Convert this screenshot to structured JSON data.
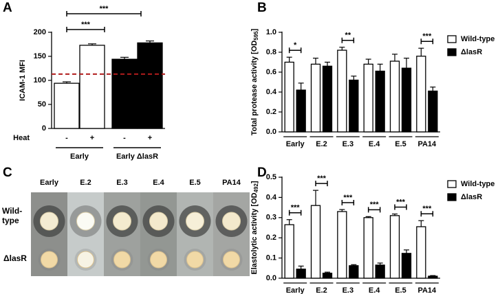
{
  "chart_data": [
    {
      "type": "bar",
      "panel_label": "A",
      "y_label": {
        "text": "ICAM-1 MFI"
      },
      "x_label": "Heat",
      "categories": [
        "-",
        "+",
        "-",
        "+"
      ],
      "groups": [
        "Early",
        "Early ΔlasR"
      ],
      "values": [
        94,
        173,
        144,
        178
      ],
      "errors": [
        3,
        3,
        4,
        4
      ],
      "colors": [
        "#ffffff",
        "#ffffff",
        "#000000",
        "#000000"
      ],
      "ylim": [
        0,
        200
      ],
      "yticks": [
        0,
        50,
        100,
        150,
        200
      ],
      "reference_line": {
        "value": 113,
        "color": "#b01c1c"
      },
      "annotations": [
        "***",
        "***"
      ]
    },
    {
      "type": "grouped_bar",
      "panel_label": "B",
      "y_label": {
        "text": "Total protease activity [OD",
        "subscript": "595",
        "suffix": "]"
      },
      "categories": [
        "Early",
        "E.2",
        "E.3",
        "E.4",
        "E.5",
        "PA14"
      ],
      "series": [
        {
          "name": "Wild-type",
          "color": "#ffffff",
          "values": [
            0.7,
            0.68,
            0.82,
            0.68,
            0.71,
            0.76
          ],
          "errors": [
            0.05,
            0.06,
            0.03,
            0.05,
            0.07,
            0.08
          ]
        },
        {
          "name": "ΔlasR",
          "color": "#000000",
          "values": [
            0.42,
            0.66,
            0.52,
            0.61,
            0.64,
            0.41
          ],
          "errors": [
            0.07,
            0.04,
            0.04,
            0.07,
            0.1,
            0.04
          ]
        }
      ],
      "ylim": [
        0,
        1
      ],
      "yticks": [
        {
          "value": 0,
          "label": "0.0"
        },
        0.2,
        0.4,
        0.6,
        0.8,
        {
          "value": 1,
          "label": "1.0"
        }
      ],
      "annotations": [
        "*",
        null,
        "**",
        null,
        null,
        "***"
      ]
    },
    {
      "type": "grouped_bar",
      "panel_label": "D",
      "y_label": {
        "text": "Elastolytic activity [OD",
        "subscript": "492",
        "suffix": "]"
      },
      "categories": [
        "Early",
        "E.2",
        "E.3",
        "E.4",
        "E.5",
        "PA14"
      ],
      "series": [
        {
          "name": "Wild-type",
          "color": "#ffffff",
          "values": [
            0.265,
            0.36,
            0.33,
            0.3,
            0.31,
            0.255
          ],
          "errors": [
            0.025,
            0.075,
            0.01,
            0.005,
            0.008,
            0.03
          ]
        },
        {
          "name": "ΔlasR",
          "color": "#000000",
          "values": [
            0.045,
            0.025,
            0.062,
            0.065,
            0.123,
            0.01
          ],
          "errors": [
            0.015,
            0.005,
            0.005,
            0.01,
            0.017,
            0.003
          ]
        }
      ],
      "ylim": [
        0,
        0.5
      ],
      "yticks": [
        {
          "value": 0,
          "label": "0.0"
        },
        0.1,
        0.2,
        0.3,
        0.4,
        0.5
      ],
      "annotations": [
        "***",
        "***",
        "***",
        "***",
        "***",
        "***"
      ]
    }
  ],
  "photo_panel": {
    "panel_label": "C",
    "columns": [
      "Early",
      "E.2",
      "E.3",
      "E.4",
      "E.5",
      "PA14"
    ],
    "rows": [
      "Wild-type",
      "ΔlasR"
    ]
  }
}
